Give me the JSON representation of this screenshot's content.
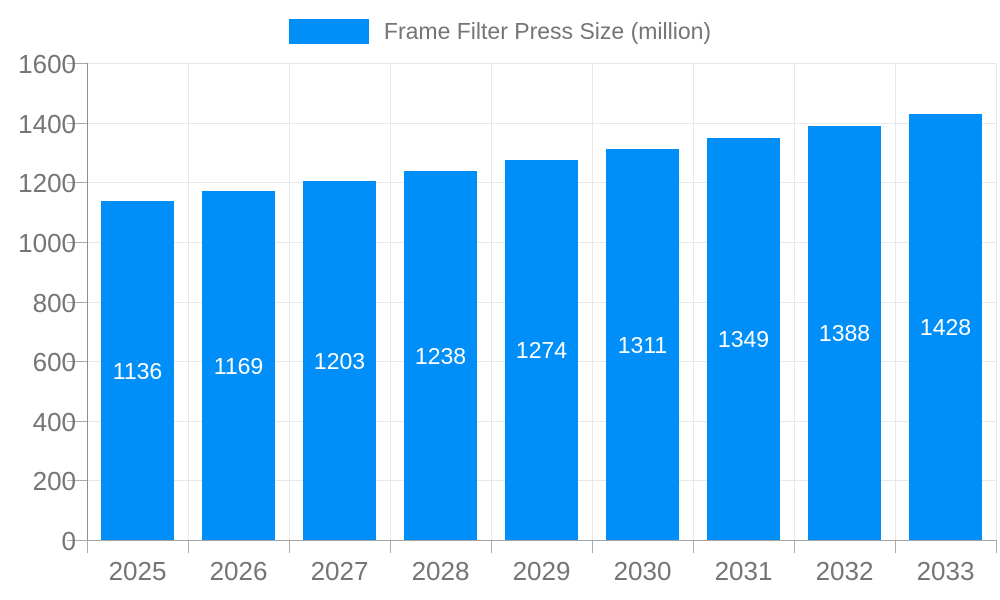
{
  "chart_data": {
    "type": "bar",
    "title": "Frame Filter Press Size (million)",
    "categories": [
      "2025",
      "2026",
      "2027",
      "2028",
      "2029",
      "2030",
      "2031",
      "2032",
      "2033"
    ],
    "series": [
      {
        "name": "Frame Filter Press Size (million)",
        "values": [
          1136,
          1169,
          1203,
          1238,
          1274,
          1311,
          1349,
          1388,
          1428
        ]
      }
    ],
    "xlabel": "",
    "ylabel": "",
    "ylim": [
      0,
      1600
    ],
    "yticks": [
      0,
      200,
      400,
      600,
      800,
      1000,
      1200,
      1400,
      1600
    ],
    "grid": true,
    "legend_position": "top",
    "bar_value_labels_shown": true,
    "colors": {
      "bar": "#008FF8",
      "bar_label": "#FFFFFF",
      "axis_text": "#757575",
      "legend_text": "#757575",
      "gridline": "#E8E8E8",
      "axis_line": "#A6A6A6",
      "background": "#FFFFFF"
    }
  }
}
